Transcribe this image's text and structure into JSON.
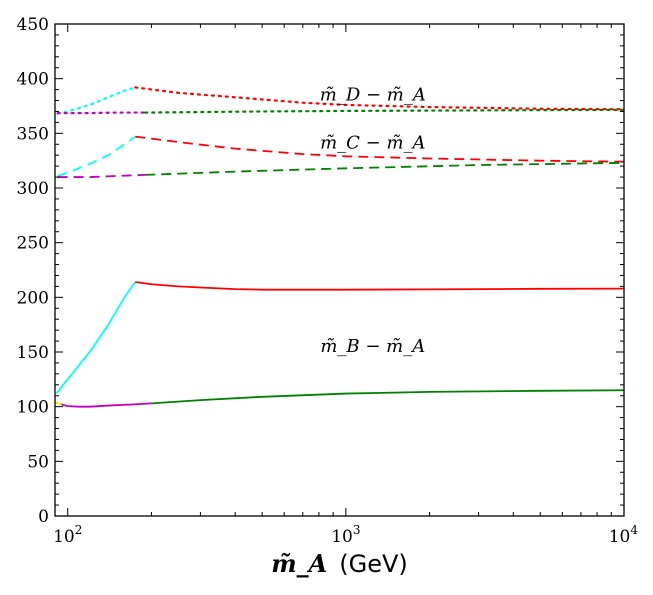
{
  "chart_data": {
    "type": "line",
    "title": "",
    "xlabel": {
      "symbol": "m̃_A",
      "unit": "(GeV)"
    },
    "ylabel": "",
    "x_scale": "log",
    "xlim": [
      90,
      10000
    ],
    "ylim": [
      0,
      450
    ],
    "grid": false,
    "x_ticks": [
      {
        "value": 100,
        "base": "10",
        "exp": "2"
      },
      {
        "value": 1000,
        "base": "10",
        "exp": "3"
      },
      {
        "value": 10000,
        "base": "10",
        "exp": "4"
      }
    ],
    "y_ticks": [
      0,
      50,
      100,
      150,
      200,
      250,
      300,
      350,
      400,
      450
    ],
    "annotations": [
      {
        "text": "m̃_D − m̃_A",
        "x": 1250,
        "y": 380
      },
      {
        "text": "m̃_C − m̃_A",
        "x": 1250,
        "y": 336
      },
      {
        "text": "m̃_B − m̃_A",
        "x": 1250,
        "y": 150
      }
    ],
    "series": [
      {
        "name": "B-cyan",
        "color": "#00ffff",
        "style": "solid",
        "x": [
          91,
          100,
          120,
          140,
          160,
          175
        ],
        "y": [
          112,
          125,
          150,
          175,
          200,
          214
        ]
      },
      {
        "name": "B-red",
        "color": "#ff0000",
        "style": "solid",
        "x": [
          175,
          200,
          250,
          300,
          400,
          500,
          700,
          1000,
          2000,
          5000,
          10000
        ],
        "y": [
          214,
          212,
          210,
          209,
          207.5,
          207,
          207,
          207,
          207.3,
          207.8,
          208
        ]
      },
      {
        "name": "B-yellow",
        "color": "#e8e800",
        "style": "solid",
        "x": [
          90,
          95
        ],
        "y": [
          104,
          102
        ]
      },
      {
        "name": "B-magenta",
        "color": "#bf00bf",
        "style": "solid",
        "x": [
          95,
          100,
          110,
          120,
          140,
          170,
          200
        ],
        "y": [
          102,
          100.5,
          100,
          100,
          101,
          102,
          103
        ]
      },
      {
        "name": "B-green",
        "color": "#008000",
        "style": "solid",
        "x": [
          200,
          300,
          500,
          1000,
          2000,
          5000,
          10000
        ],
        "y": [
          103,
          106,
          109,
          112,
          113.5,
          114.5,
          115
        ]
      },
      {
        "name": "C-cyan",
        "color": "#00ffff",
        "style": "dashed",
        "x": [
          92,
          100,
          120,
          140,
          160,
          175
        ],
        "y": [
          311,
          314,
          322,
          330,
          340,
          347
        ]
      },
      {
        "name": "C-red",
        "color": "#ff0000",
        "style": "dashed",
        "x": [
          175,
          250,
          400,
          700,
          1000,
          2000,
          5000,
          10000
        ],
        "y": [
          347,
          342,
          336,
          331,
          329,
          327,
          325,
          324
        ]
      },
      {
        "name": "C-magenta",
        "color": "#bf00bf",
        "style": "dashed",
        "x": [
          92,
          120,
          150,
          190
        ],
        "y": [
          310,
          310,
          311,
          312
        ]
      },
      {
        "name": "C-green",
        "color": "#008000",
        "style": "dashed",
        "x": [
          190,
          400,
          1000,
          3000,
          10000
        ],
        "y": [
          312,
          315,
          318,
          321,
          323
        ]
      },
      {
        "name": "D-cyan",
        "color": "#00ffff",
        "style": "dotted",
        "x": [
          92,
          100,
          120,
          140,
          160,
          175
        ],
        "y": [
          368,
          370,
          376,
          383,
          389,
          392
        ]
      },
      {
        "name": "D-red",
        "color": "#ff0000",
        "style": "dotted",
        "x": [
          175,
          250,
          400,
          700,
          1000,
          2000,
          5000,
          10000
        ],
        "y": [
          392,
          387,
          383,
          378,
          376,
          374,
          372.5,
          372
        ]
      },
      {
        "name": "D-magenta",
        "color": "#bf00bf",
        "style": "dotted",
        "x": [
          92,
          120,
          150,
          190
        ],
        "y": [
          368.5,
          368.5,
          369,
          369
        ]
      },
      {
        "name": "D-green",
        "color": "#008000",
        "style": "dotted",
        "x": [
          190,
          500,
          1000,
          3000,
          10000
        ],
        "y": [
          369,
          370,
          370.5,
          371,
          371.5
        ]
      }
    ]
  }
}
